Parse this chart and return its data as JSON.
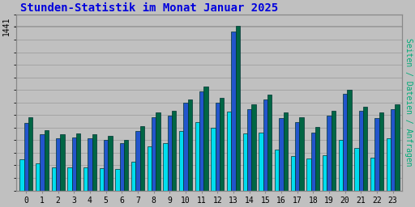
{
  "title": "Stunden-Statistik im Monat Januar 2025",
  "ylabel_right": "Seiten / Dateien / Anfragen",
  "ytick_label": "1441",
  "background_color": "#c0c0c0",
  "plot_bg_color": "#c0c0c0",
  "title_color": "#0000dd",
  "grid_color": "#999999",
  "hours": [
    0,
    1,
    2,
    3,
    4,
    5,
    6,
    7,
    8,
    9,
    10,
    11,
    12,
    13,
    14,
    15,
    16,
    17,
    18,
    19,
    20,
    21,
    22,
    23
  ],
  "seiten": [
    640,
    530,
    490,
    500,
    490,
    475,
    445,
    565,
    680,
    695,
    800,
    910,
    810,
    1441,
    755,
    840,
    680,
    640,
    555,
    695,
    880,
    735,
    680,
    755
  ],
  "dateien": [
    590,
    490,
    455,
    465,
    455,
    445,
    415,
    520,
    640,
    655,
    765,
    870,
    770,
    1390,
    710,
    795,
    635,
    600,
    510,
    655,
    845,
    695,
    635,
    710
  ],
  "anfragen": [
    275,
    235,
    200,
    205,
    200,
    195,
    185,
    255,
    385,
    415,
    520,
    600,
    550,
    690,
    500,
    505,
    360,
    300,
    280,
    305,
    445,
    370,
    290,
    460
  ],
  "color_seiten": "#006644",
  "color_dateien": "#2255cc",
  "color_anfragen": "#00ddee",
  "bar_width": 0.27,
  "xlim": [
    -0.6,
    23.6
  ],
  "ylim": [
    0,
    1540
  ]
}
